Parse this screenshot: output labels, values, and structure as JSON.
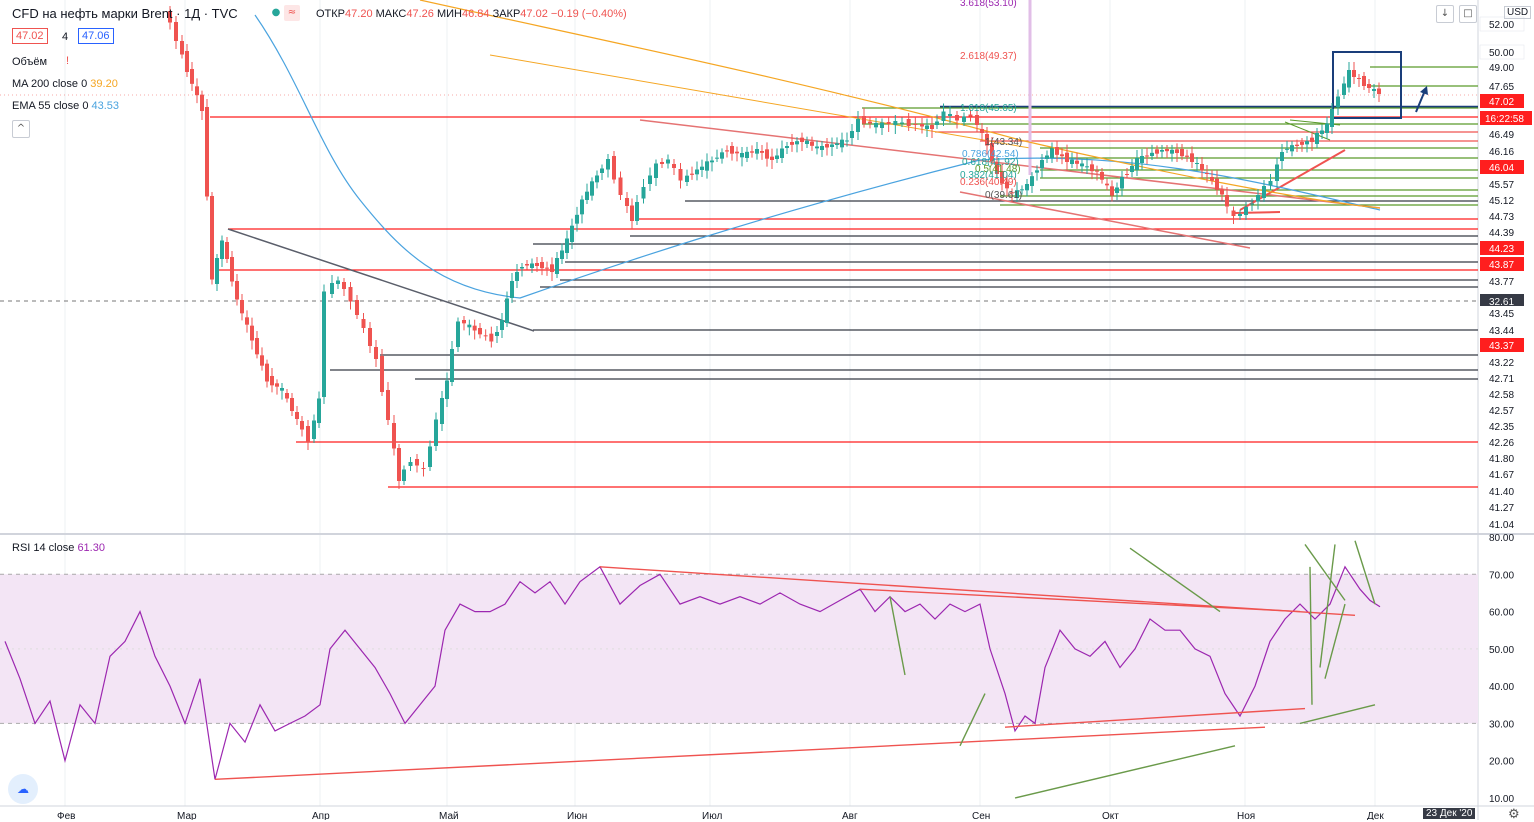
{
  "header": {
    "symbol": "CFD на нефть марки Brent · 1Д · TVC",
    "open_label": "ОТКР",
    "open": "47.20",
    "high_label": "МАКС",
    "high": "47.26",
    "low_label": "МИН",
    "low": "46.84",
    "close_label": "ЗАКР",
    "close": "47.02",
    "change": "−0.19 (−0.40%)",
    "bid": "47.02",
    "spread": "4",
    "ask": "47.06"
  },
  "indicators": {
    "volume": "Объём",
    "ma_label": "MA 200 close 0",
    "ma_value": "39.20",
    "ema_label": "EMA 55 close 0",
    "ema_value": "43.53",
    "rsi_label": "RSI 14 close",
    "rsi_value": "61.30"
  },
  "currency": "USD",
  "crosshair_time": "23 Дек '20",
  "countdown": "16:22:58",
  "colors": {
    "up": "#26a69a",
    "down": "#ef5350",
    "ma": "#f5a623",
    "ema": "#4aa3df",
    "rsi": "#9c27b0",
    "level_red": "#ff1e1e",
    "level_dark": "#363a45"
  },
  "chart_data": {
    "type": "candlestick",
    "x_months": [
      "Фев",
      "Мар",
      "Апр",
      "Май",
      "Июн",
      "Июл",
      "Авг",
      "Сен",
      "Окт",
      "Ноя",
      "Дек"
    ],
    "price_axis_labels": [
      "52.00",
      "50.00",
      "49.00",
      "47.65",
      "47.02",
      "46.49",
      "46.16",
      "46.04",
      "45.57",
      "45.12",
      "44.73",
      "44.39",
      "44.23",
      "43.87",
      "43.77",
      "32.61",
      "43.45",
      "43.44",
      "43.37",
      "43.22",
      "42.71",
      "42.58",
      "42.57",
      "42.35",
      "42.26",
      "41.80",
      "41.67",
      "41.40",
      "41.27",
      "41.04"
    ],
    "highlighted_labels": [
      "47.02",
      "46.04",
      "44.23",
      "43.87",
      "43.37"
    ],
    "dark_labels": [
      "32.61"
    ],
    "green_labels": [
      "49.00",
      "47.65",
      "46.49",
      "46.16",
      "45.57",
      "45.12",
      "44.73",
      "44.39",
      "43.77",
      "43.45",
      "43.44",
      "43.22",
      "42.71",
      "42.58",
      "42.57",
      "42.35",
      "42.26",
      "41.80",
      "41.67",
      "41.40",
      "41.27",
      "41.04"
    ],
    "fib_levels": [
      "3.618(53.10)",
      "2.618(49.37)",
      "1.618(45.65)",
      "1(43.34)",
      "0.786(42.54)",
      "0.618(41.92)",
      "0.5(41.48)",
      "0.382(41.04)",
      "0.236(40.49)",
      "0(39.61)"
    ],
    "rsi_axis_labels": [
      "80.00",
      "70.00",
      "60.00",
      "50.00",
      "40.00",
      "30.00",
      "20.00",
      "10.00"
    ],
    "rsi_ylim": [
      10,
      80
    ],
    "rsi_overbought": 70,
    "rsi_oversold": 30,
    "rsi_last": 61.3,
    "last_close": 47.02
  }
}
